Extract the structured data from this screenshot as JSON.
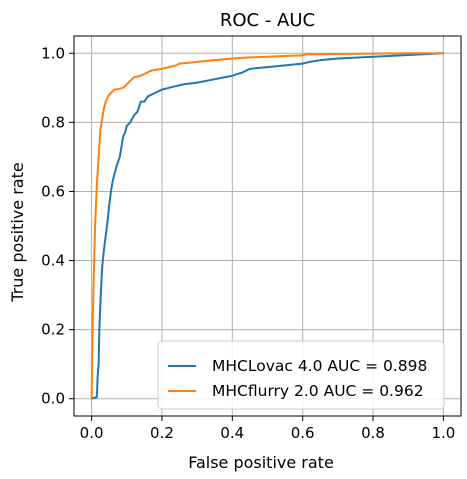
{
  "chart_data": {
    "type": "line",
    "title": "ROC - AUC",
    "xlabel": "False positive rate",
    "ylabel": "True positive rate",
    "xlim": [
      -0.05,
      1.05
    ],
    "ylim": [
      -0.05,
      1.05
    ],
    "xticks": [
      0.0,
      0.2,
      0.4,
      0.6,
      0.8,
      1.0
    ],
    "yticks": [
      0.0,
      0.2,
      0.4,
      0.6,
      0.8,
      1.0
    ],
    "xtick_labels": [
      "0.0",
      "0.2",
      "0.4",
      "0.6",
      "0.8",
      "1.0"
    ],
    "ytick_labels": [
      "0.0",
      "0.2",
      "0.4",
      "0.6",
      "0.8",
      "1.0"
    ],
    "grid": true,
    "legend_position": "lower-right",
    "series": [
      {
        "name": "MHCLovac 4.0 AUC = 0.898",
        "color": "#1f77b4",
        "x": [
          0.0,
          0.0,
          0.015,
          0.017,
          0.02,
          0.022,
          0.026,
          0.03,
          0.035,
          0.04,
          0.045,
          0.05,
          0.055,
          0.06,
          0.065,
          0.07,
          0.08,
          0.085,
          0.09,
          0.095,
          0.1,
          0.11,
          0.12,
          0.13,
          0.14,
          0.15,
          0.16,
          0.17,
          0.19,
          0.2,
          0.22,
          0.24,
          0.26,
          0.3,
          0.35,
          0.4,
          0.43,
          0.45,
          0.5,
          0.55,
          0.6,
          0.62,
          0.65,
          0.7,
          0.8,
          0.9,
          1.0
        ],
        "y": [
          0.0,
          0.0,
          0.005,
          0.06,
          0.1,
          0.2,
          0.3,
          0.38,
          0.43,
          0.47,
          0.51,
          0.56,
          0.6,
          0.63,
          0.65,
          0.67,
          0.7,
          0.73,
          0.76,
          0.77,
          0.79,
          0.8,
          0.82,
          0.83,
          0.86,
          0.86,
          0.875,
          0.88,
          0.89,
          0.895,
          0.9,
          0.905,
          0.91,
          0.915,
          0.925,
          0.935,
          0.945,
          0.955,
          0.96,
          0.965,
          0.97,
          0.975,
          0.98,
          0.985,
          0.99,
          0.995,
          1.0
        ]
      },
      {
        "name": "MHCflurry 2.0 AUC = 0.962",
        "color": "#ff7f0e",
        "x": [
          0.0,
          0.0,
          0.003,
          0.006,
          0.01,
          0.015,
          0.02,
          0.025,
          0.03,
          0.035,
          0.04,
          0.045,
          0.05,
          0.055,
          0.06,
          0.065,
          0.07,
          0.09,
          0.1,
          0.11,
          0.12,
          0.14,
          0.16,
          0.17,
          0.2,
          0.22,
          0.24,
          0.25,
          0.3,
          0.35,
          0.4,
          0.45,
          0.5,
          0.55,
          0.6,
          0.61,
          0.7,
          0.8,
          0.9,
          1.0
        ],
        "y": [
          0.0,
          0.0,
          0.2,
          0.35,
          0.5,
          0.62,
          0.7,
          0.78,
          0.81,
          0.84,
          0.86,
          0.87,
          0.88,
          0.885,
          0.89,
          0.895,
          0.895,
          0.9,
          0.91,
          0.92,
          0.93,
          0.935,
          0.945,
          0.95,
          0.955,
          0.96,
          0.965,
          0.97,
          0.975,
          0.98,
          0.985,
          0.988,
          0.99,
          0.992,
          0.994,
          0.997,
          0.998,
          0.999,
          1.0,
          1.0
        ]
      }
    ]
  }
}
